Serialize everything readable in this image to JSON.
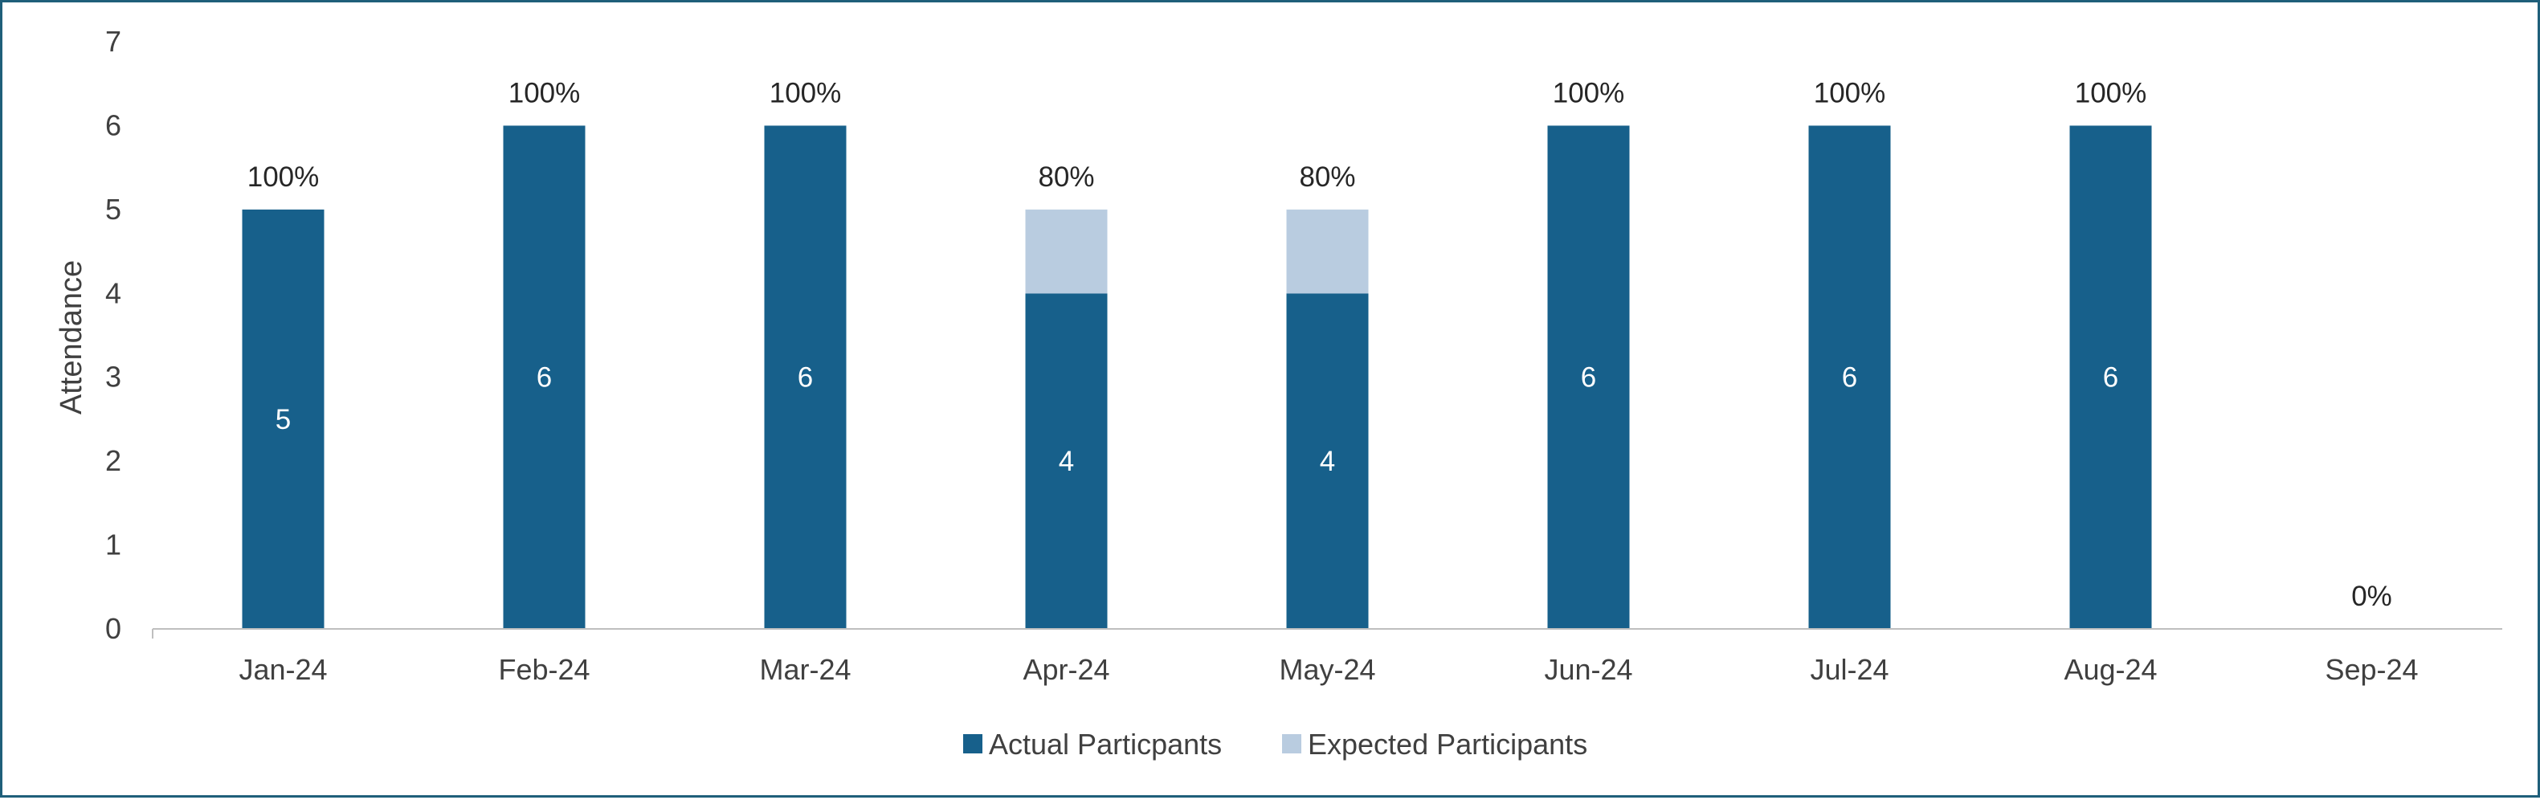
{
  "chart_data": {
    "type": "bar",
    "stacked": true,
    "title": "",
    "xlabel": "",
    "ylabel": "Attendance",
    "ylim": [
      0,
      7
    ],
    "yticks": [
      0,
      1,
      2,
      3,
      4,
      5,
      6,
      7
    ],
    "categories": [
      "Jan-24",
      "Feb-24",
      "Mar-24",
      "Apr-24",
      "May-24",
      "Jun-24",
      "Jul-24",
      "Aug-24",
      "Sep-24"
    ],
    "series": [
      {
        "name": "Actual Particpants",
        "color": "#17608b",
        "values": [
          5,
          6,
          6,
          4,
          4,
          6,
          6,
          6,
          0
        ],
        "data_labels": [
          "5",
          "6",
          "6",
          "4",
          "4",
          "6",
          "6",
          "6",
          ""
        ]
      },
      {
        "name": "Expected Participants",
        "color": "#b9cce0",
        "values": [
          0,
          0,
          0,
          1,
          1,
          0,
          0,
          0,
          0
        ]
      }
    ],
    "percent_labels": [
      "100%",
      "100%",
      "100%",
      "80%",
      "80%",
      "100%",
      "100%",
      "100%",
      "0%"
    ],
    "grid": false,
    "legend_position": "bottom-center",
    "colors": {
      "axis": "#bfbfbf",
      "border": "#1f5f7a"
    }
  }
}
